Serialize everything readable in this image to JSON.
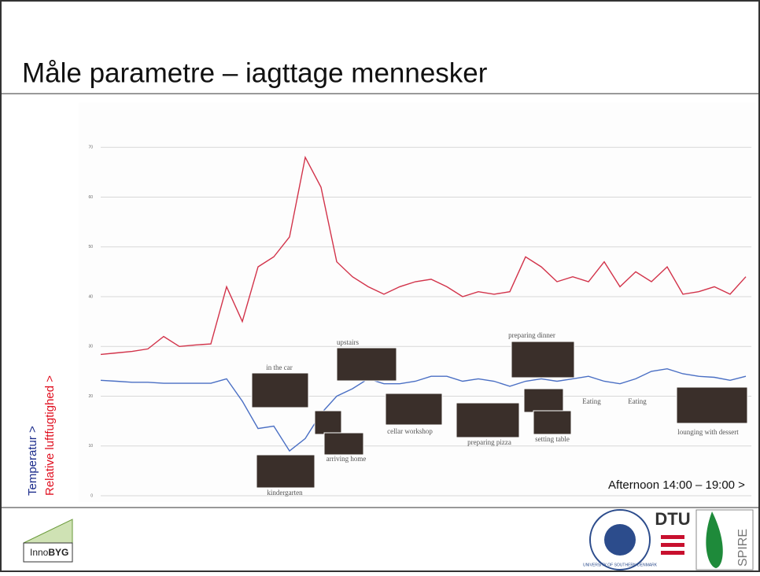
{
  "title": "Måle parametre – iagttage mennesker",
  "chart_data": {
    "type": "line",
    "series": [
      {
        "name": "Relative luftfugtighed >",
        "color": "#d2334a",
        "values": [
          28.4,
          28.7,
          29,
          29.5,
          32,
          30,
          30.3,
          30.5,
          42,
          35,
          46,
          48,
          52,
          68,
          62,
          47,
          44,
          42,
          40.5,
          42,
          43,
          43.5,
          42,
          40,
          41,
          40.5,
          41,
          48,
          46,
          43,
          44,
          43,
          47,
          42,
          45,
          43,
          46,
          40.5,
          41,
          42,
          40.5,
          44
        ]
      },
      {
        "name": "Temperatur  >",
        "color": "#4a6fc4",
        "values": [
          23.2,
          23,
          22.8,
          22.8,
          22.6,
          22.6,
          22.6,
          22.6,
          23.5,
          19,
          13.5,
          14,
          9,
          11.5,
          16.5,
          20,
          21.5,
          23.5,
          22.5,
          22.5,
          23,
          24,
          24,
          23,
          23.5,
          23,
          22,
          23,
          23.5,
          23,
          23.5,
          24,
          23,
          22.5,
          23.5,
          25,
          25.5,
          24.5,
          24,
          23.8,
          23.2,
          24
        ]
      }
    ],
    "ylim": [
      0,
      77
    ],
    "yticks": [
      0,
      10,
      20,
      30,
      40,
      50,
      60,
      70
    ],
    "grid": true,
    "xlabel": "Afternoon 14:00 – 19:00 >",
    "annotations": [
      "in the car",
      "upstairs",
      "preparing dinner",
      "kindergarten",
      "arriving home",
      "cellar workshop",
      "preparing pizza",
      "setting table",
      "Eating",
      "Eating",
      "lounging with dessert"
    ]
  },
  "logos": {
    "innobyg_a": "Inno",
    "innobyg_b": "BYG",
    "university": "UNIVERSITY OF SOUTHERN DENMARK",
    "dtu": "DTU",
    "spire": "SPIRE"
  }
}
